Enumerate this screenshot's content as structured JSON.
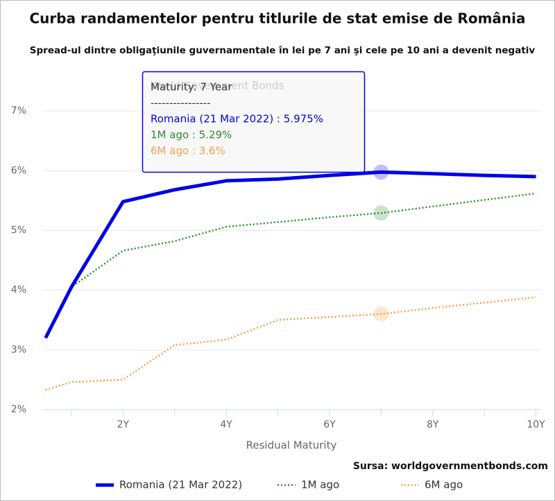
{
  "chart_data": {
    "type": "line",
    "title": "Curba randamentelor pentru titlurile de stat emise de România",
    "subtitle": "Spread-ul dintre obligaţiunile guvernamentale în lei pe 7 ani şi cele pe 10 ani a devenit negativ",
    "watermark": "World Government Bonds",
    "x_label": "Residual Maturity",
    "source": "Sursa: worldgovernmentbonds.com",
    "x": [
      0.5,
      1,
      2,
      3,
      4,
      5,
      6,
      7,
      8,
      9,
      10
    ],
    "series": [
      {
        "name": "Romania (21 Mar 2022)",
        "color": "#0000e6",
        "style": "solid",
        "values": [
          3.2,
          4.05,
          5.48,
          5.68,
          5.83,
          5.86,
          5.92,
          5.975,
          5.95,
          5.92,
          5.9
        ]
      },
      {
        "name": "1M ago",
        "color": "#2e8b2e",
        "style": "dotted",
        "values": [
          3.2,
          4.05,
          4.66,
          4.82,
          5.06,
          5.14,
          5.22,
          5.29,
          5.4,
          5.51,
          5.62
        ]
      },
      {
        "name": "6M ago",
        "color": "#f5a04a",
        "style": "dotted",
        "values": [
          2.33,
          2.46,
          2.5,
          3.08,
          3.17,
          3.5,
          3.55,
          3.6,
          3.7,
          3.79,
          3.88
        ]
      }
    ],
    "highlight_index": 7,
    "xlim": [
      0.45,
      10.1
    ],
    "xticks": [
      {
        "value": 2,
        "label": "2Y"
      },
      {
        "value": 4,
        "label": "4Y"
      },
      {
        "value": 6,
        "label": "6Y"
      },
      {
        "value": 8,
        "label": "8Y"
      },
      {
        "value": 10,
        "label": "10Y"
      }
    ],
    "xminorticks": [
      1,
      3,
      5,
      7,
      9
    ],
    "ylim": [
      2,
      7.5
    ],
    "yticks": [
      {
        "value": 2,
        "label": "2%"
      },
      {
        "value": 3,
        "label": "3%"
      },
      {
        "value": 4,
        "label": "4%"
      },
      {
        "value": 5,
        "label": "5%"
      },
      {
        "value": 6,
        "label": "6%"
      },
      {
        "value": 7,
        "label": "7%"
      }
    ],
    "grid": true,
    "legend": "bottom",
    "tooltip": {
      "lines": [
        "Maturity: 7 Year",
        "----------------",
        "Romania (21 Mar 2022) : 5.975%",
        "1M ago : 5.29%",
        "6M ago : 3.6%"
      ]
    }
  }
}
